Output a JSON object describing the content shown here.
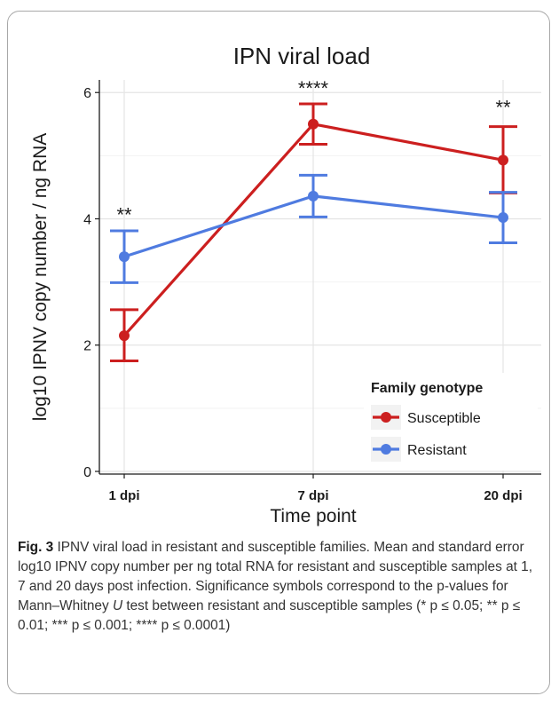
{
  "chart_data": {
    "type": "line",
    "title": "IPN viral load",
    "xlabel": "Time point",
    "ylabel": "log10 IPNV copy number / ng RNA",
    "categories": [
      "1 dpi",
      "7 dpi",
      "20 dpi"
    ],
    "yticks": [
      0,
      2,
      4,
      6
    ],
    "ylim": [
      0,
      6.2
    ],
    "grid": true,
    "legend": {
      "title": "Family genotype",
      "position": "bottom-right"
    },
    "series": [
      {
        "name": "Susceptible",
        "color": "#cc1f1f",
        "values": [
          2.15,
          5.5,
          4.93
        ],
        "err_low": [
          1.75,
          5.18,
          4.41
        ],
        "err_high": [
          2.56,
          5.82,
          5.46
        ]
      },
      {
        "name": "Resistant",
        "color": "#4f7be0",
        "values": [
          3.4,
          4.36,
          4.02
        ],
        "err_low": [
          2.99,
          4.03,
          3.62
        ],
        "err_high": [
          3.81,
          4.69,
          4.42
        ]
      }
    ],
    "annotations": [
      {
        "category": "1 dpi",
        "text": "**",
        "y": 4.1
      },
      {
        "category": "7 dpi",
        "text": "****",
        "y": 6.1
      },
      {
        "category": "20 dpi",
        "text": "**",
        "y": 5.8
      }
    ]
  },
  "caption": {
    "label": "Fig. 3",
    "text_1": " IPNV viral load in resistant and susceptible families. Mean and standard error log10 IPNV copy number per ng total RNA for resistant and susceptible samples at 1, 7 and 20 days post infection. Significance symbols correspond to the p-values for Mann–Whitney ",
    "italic_u": "U",
    "text_2": " test between resistant and susceptible samples (* p ≤ 0.05; ** p ≤ 0.01; *** p ≤ 0.001; **** p ≤ 0.0001)"
  }
}
